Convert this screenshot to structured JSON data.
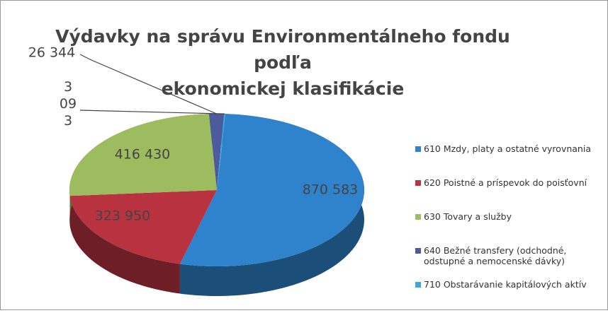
{
  "chart_data": {
    "type": "pie3d",
    "title": [
      "Výdavky na správu Environmentálneho fondu",
      "podľa",
      "ekonomickej klasifikácie"
    ],
    "series": [
      {
        "name": "610 Mzdy, platy a ostatné vyrovnania",
        "color": "#2f82cc",
        "value": 870583,
        "value_label": "870 583"
      },
      {
        "name": "620 Poistné a príspevok do poisťovní",
        "color": "#b8323f",
        "value": 323950,
        "value_label": "323 950"
      },
      {
        "name": "630 Tovary a služby",
        "color": "#9dbb5f",
        "value": 416430,
        "value_label": "416 430"
      },
      {
        "name": "640 Bežné transfery (odchodné, odstupné a nemocenské dávky)",
        "color": "#4d5b9e",
        "value": 26344,
        "value_label": "26 344"
      },
      {
        "name": "710 Obstarávanie kapitálových aktív",
        "color": "#3da7da",
        "value": 3093,
        "value_label": "3 093"
      }
    ]
  }
}
